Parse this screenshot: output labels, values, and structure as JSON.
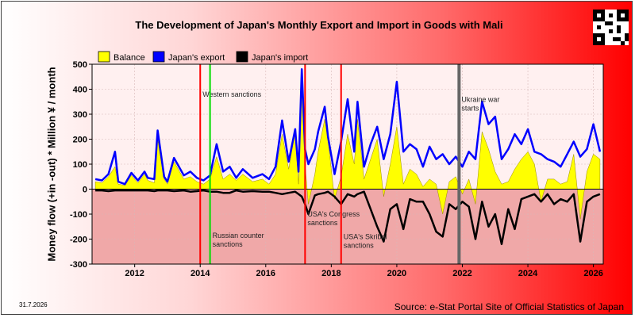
{
  "title": "The Development of Japan's Monthly Export and Import in Goods with Mali",
  "source": "Source: e-Stat Portal Site of Official Statistics of Japan",
  "date_stamp": "31.7.2026",
  "chart_data": {
    "type": "area",
    "ylabel": "Money flow (+in -out) * Million ¥ / month",
    "ylim": [
      -300,
      500
    ],
    "yticks": [
      -300,
      -200,
      -100,
      0,
      100,
      200,
      300,
      400,
      500
    ],
    "xlim": [
      2010.7,
      2026.3
    ],
    "xticks": [
      2012,
      2014,
      2016,
      2018,
      2020,
      2022,
      2024,
      2026
    ],
    "grid": true,
    "legend_position": "top",
    "colors": {
      "balance": "#ffff00",
      "export": "#0000ff",
      "import": "#000000",
      "sanction_red": "#ff0000",
      "sanction_green": "#00dd00",
      "ukraine": "#666666"
    },
    "series": [
      {
        "name": "Balance",
        "x": [
          2010.8,
          2011.0,
          2011.2,
          2011.4,
          2011.5,
          2011.7,
          2011.9,
          2012.1,
          2012.3,
          2012.4,
          2012.6,
          2012.7,
          2012.9,
          2013.0,
          2013.2,
          2013.5,
          2013.7,
          2013.9,
          2014.1,
          2014.3,
          2014.5,
          2014.7,
          2014.9,
          2015.1,
          2015.3,
          2015.6,
          2015.9,
          2016.1,
          2016.3,
          2016.5,
          2016.7,
          2016.9,
          2017.0,
          2017.1,
          2017.2,
          2017.3,
          2017.5,
          2017.6,
          2017.8,
          2017.9,
          2018.1,
          2018.3,
          2018.5,
          2018.7,
          2018.8,
          2019.0,
          2019.2,
          2019.4,
          2019.6,
          2019.8,
          2020.0,
          2020.2,
          2020.4,
          2020.6,
          2020.8,
          2021.0,
          2021.2,
          2021.4,
          2021.6,
          2021.8,
          2022.0,
          2022.2,
          2022.4,
          2022.6,
          2022.8,
          2023.0,
          2023.2,
          2023.4,
          2023.6,
          2023.8,
          2024.0,
          2024.2,
          2024.4,
          2024.6,
          2024.8,
          2025.0,
          2025.2,
          2025.4,
          2025.6,
          2025.8,
          2026.0,
          2026.2
        ],
        "values": [
          30,
          25,
          50,
          90,
          20,
          15,
          55,
          25,
          60,
          35,
          25,
          200,
          40,
          20,
          110,
          40,
          50,
          30,
          20,
          40,
          130,
          40,
          60,
          35,
          60,
          30,
          40,
          20,
          60,
          220,
          80,
          230,
          20,
          400,
          100,
          -60,
          60,
          150,
          280,
          200,
          -40,
          50,
          220,
          100,
          280,
          40,
          120,
          200,
          -30,
          100,
          250,
          20,
          80,
          60,
          10,
          40,
          20,
          -100,
          30,
          50,
          -20,
          40,
          -60,
          230,
          160,
          70,
          20,
          30,
          80,
          120,
          150,
          100,
          -50,
          40,
          40,
          20,
          30,
          140,
          -120,
          70,
          140,
          120
        ]
      },
      {
        "name": "Japan's export",
        "x": [
          2010.8,
          2011.0,
          2011.2,
          2011.4,
          2011.5,
          2011.7,
          2011.9,
          2012.1,
          2012.3,
          2012.4,
          2012.6,
          2012.7,
          2012.9,
          2013.0,
          2013.2,
          2013.5,
          2013.7,
          2013.9,
          2014.1,
          2014.3,
          2014.5,
          2014.7,
          2014.9,
          2015.1,
          2015.3,
          2015.6,
          2015.9,
          2016.1,
          2016.3,
          2016.5,
          2016.7,
          2016.9,
          2017.0,
          2017.1,
          2017.2,
          2017.3,
          2017.5,
          2017.6,
          2017.8,
          2017.9,
          2018.1,
          2018.3,
          2018.5,
          2018.7,
          2018.8,
          2019.0,
          2019.2,
          2019.4,
          2019.6,
          2019.8,
          2020.0,
          2020.2,
          2020.4,
          2020.6,
          2020.8,
          2021.0,
          2021.2,
          2021.4,
          2021.6,
          2021.8,
          2022.0,
          2022.2,
          2022.4,
          2022.6,
          2022.8,
          2023.0,
          2023.2,
          2023.4,
          2023.6,
          2023.8,
          2024.0,
          2024.2,
          2024.4,
          2024.6,
          2024.8,
          2025.0,
          2025.2,
          2025.4,
          2025.6,
          2025.8,
          2026.0,
          2026.2
        ],
        "values": [
          40,
          35,
          60,
          150,
          30,
          20,
          65,
          35,
          70,
          45,
          40,
          235,
          50,
          30,
          125,
          55,
          70,
          45,
          35,
          55,
          180,
          70,
          90,
          45,
          80,
          45,
          60,
          40,
          90,
          275,
          110,
          240,
          70,
          480,
          160,
          100,
          160,
          230,
          330,
          210,
          60,
          190,
          360,
          150,
          350,
          90,
          180,
          250,
          120,
          220,
          430,
          150,
          180,
          160,
          90,
          170,
          120,
          140,
          100,
          130,
          90,
          150,
          120,
          350,
          260,
          290,
          120,
          160,
          220,
          180,
          240,
          150,
          140,
          120,
          110,
          90,
          140,
          190,
          130,
          160,
          260,
          150
        ]
      },
      {
        "name": "Japan's import",
        "x": [
          2010.8,
          2011.0,
          2011.2,
          2011.4,
          2011.5,
          2011.7,
          2011.9,
          2012.1,
          2012.3,
          2012.4,
          2012.6,
          2012.7,
          2012.9,
          2013.0,
          2013.2,
          2013.5,
          2013.7,
          2013.9,
          2014.1,
          2014.3,
          2014.5,
          2014.7,
          2014.9,
          2015.1,
          2015.3,
          2015.6,
          2015.9,
          2016.1,
          2016.3,
          2016.5,
          2016.7,
          2016.9,
          2017.0,
          2017.1,
          2017.2,
          2017.3,
          2017.5,
          2017.6,
          2017.8,
          2017.9,
          2018.1,
          2018.3,
          2018.5,
          2018.7,
          2018.8,
          2019.0,
          2019.2,
          2019.4,
          2019.6,
          2019.8,
          2020.0,
          2020.2,
          2020.4,
          2020.6,
          2020.8,
          2021.0,
          2021.2,
          2021.4,
          2021.6,
          2021.8,
          2022.0,
          2022.2,
          2022.4,
          2022.6,
          2022.8,
          2023.0,
          2023.2,
          2023.4,
          2023.6,
          2023.8,
          2024.0,
          2024.2,
          2024.4,
          2024.6,
          2024.8,
          2025.0,
          2025.2,
          2025.4,
          2025.6,
          2025.8,
          2026.0,
          2026.2
        ],
        "values": [
          -5,
          -5,
          -8,
          -5,
          -5,
          -5,
          -5,
          -5,
          -5,
          -5,
          -8,
          -5,
          -5,
          -5,
          -8,
          -5,
          -10,
          -8,
          -5,
          -10,
          -10,
          -15,
          -15,
          -5,
          -10,
          -8,
          -10,
          -10,
          -15,
          -20,
          -15,
          -10,
          -20,
          -30,
          -60,
          -100,
          -25,
          -20,
          -15,
          -10,
          -30,
          -60,
          -20,
          -30,
          -20,
          -10,
          -80,
          -150,
          -210,
          -80,
          -60,
          -160,
          -40,
          -50,
          -50,
          -100,
          -170,
          -190,
          -60,
          -80,
          -50,
          -70,
          -200,
          -50,
          -150,
          -100,
          -220,
          -80,
          -160,
          -40,
          -30,
          -20,
          -50,
          -20,
          -60,
          -40,
          -50,
          -20,
          -210,
          -50,
          -30,
          -20
        ]
      }
    ],
    "annotations": [
      {
        "label": "Western sanctions",
        "x": 2014.0,
        "color": "sanction_red",
        "text_y": 370
      },
      {
        "label": "Russian counter sanctions",
        "x": 2014.3,
        "color": "sanction_green",
        "text_y": -195
      },
      {
        "label": "USA's Congress sanctions",
        "x": 2017.2,
        "color": "sanction_red",
        "text_y": -110
      },
      {
        "label": "USA's Skribal sanctions",
        "x": 2018.3,
        "color": "sanction_red",
        "text_y": -200
      },
      {
        "label": "Ukraine war starts",
        "x": 2021.9,
        "color": "ukraine",
        "text_y": 350
      }
    ]
  }
}
